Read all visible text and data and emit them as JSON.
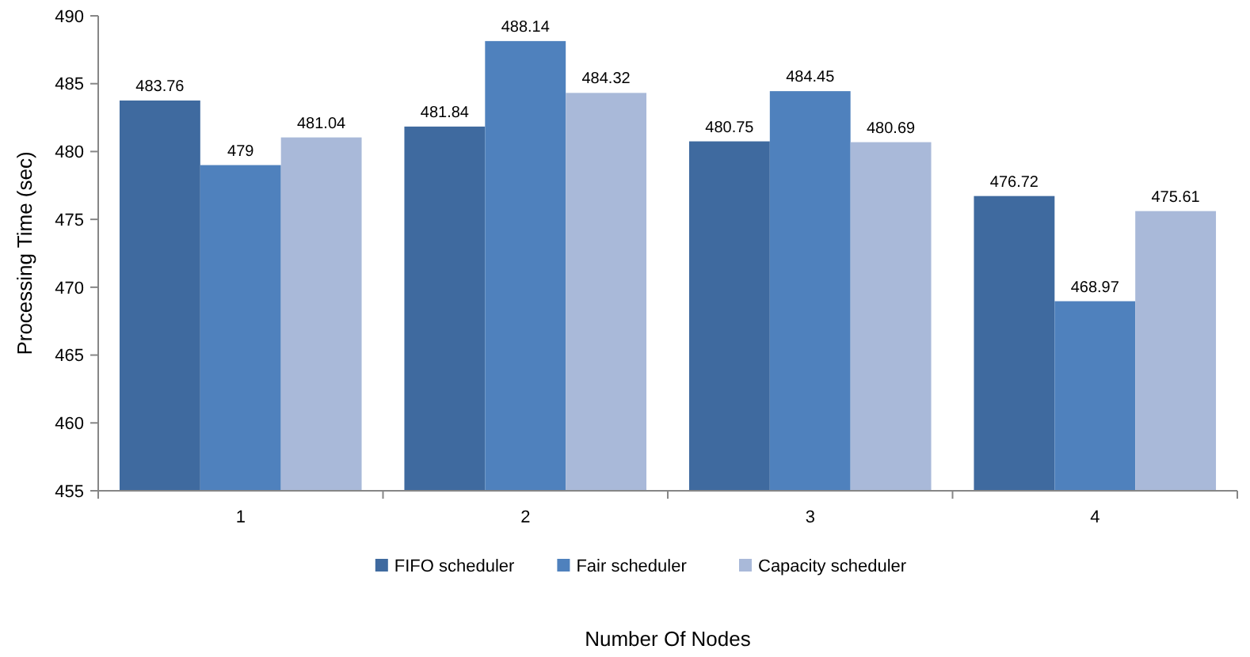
{
  "chart_data": {
    "type": "bar",
    "xlabel": "Number Of Nodes",
    "ylabel": "Processing Time (sec)",
    "categories": [
      "1",
      "2",
      "3",
      "4"
    ],
    "series": [
      {
        "name": "FIFO scheduler",
        "color": "#3f6a9f",
        "values": [
          483.76,
          481.84,
          480.75,
          476.72
        ]
      },
      {
        "name": "Fair scheduler",
        "color": "#4f81bd",
        "values": [
          479,
          488.14,
          484.45,
          468.97
        ]
      },
      {
        "name": "Capacity scheduler",
        "color": "#a9b9d9",
        "values": [
          481.04,
          484.32,
          480.69,
          475.61
        ]
      }
    ],
    "ylim": [
      455,
      490
    ],
    "yticks": [
      455,
      460,
      465,
      470,
      475,
      480,
      485,
      490
    ],
    "data_labels": true,
    "legend": "bottom",
    "grid": false
  }
}
